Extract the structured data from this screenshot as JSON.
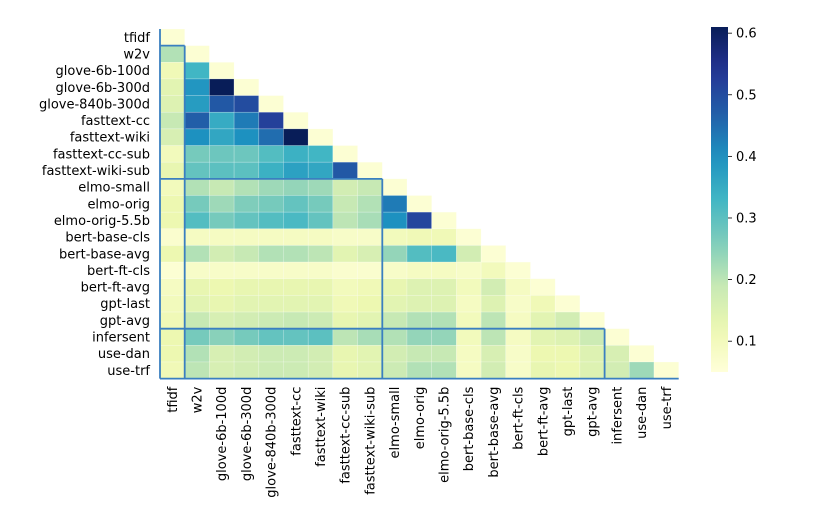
{
  "chart_data": {
    "type": "heatmap",
    "title": "",
    "mask": "lower-triangle",
    "labels": [
      "tfidf",
      "w2v",
      "glove-6b-100d",
      "glove-6b-300d",
      "glove-840b-300d",
      "fasttext-cc",
      "fasttext-wiki",
      "fasttext-cc-sub",
      "fasttext-wiki-sub",
      "elmo-small",
      "elmo-orig",
      "elmo-orig-5.5b",
      "bert-base-cls",
      "bert-base-avg",
      "bert-ft-cls",
      "bert-ft-avg",
      "gpt-last",
      "gpt-avg",
      "infersent",
      "use-dan",
      "use-trf"
    ],
    "values": [
      [
        0.06
      ],
      [
        0.21,
        0.06
      ],
      [
        0.11,
        0.33,
        0.06
      ],
      [
        0.14,
        0.39,
        0.61,
        0.06
      ],
      [
        0.15,
        0.38,
        0.48,
        0.5,
        0.06
      ],
      [
        0.19,
        0.47,
        0.35,
        0.43,
        0.52,
        0.06
      ],
      [
        0.16,
        0.4,
        0.36,
        0.4,
        0.45,
        0.61,
        0.06
      ],
      [
        0.1,
        0.27,
        0.28,
        0.28,
        0.31,
        0.34,
        0.33,
        0.06
      ],
      [
        0.13,
        0.29,
        0.3,
        0.3,
        0.34,
        0.37,
        0.36,
        0.48,
        0.06
      ],
      [
        0.1,
        0.21,
        0.19,
        0.21,
        0.23,
        0.24,
        0.23,
        0.17,
        0.19,
        0.06
      ],
      [
        0.12,
        0.27,
        0.23,
        0.26,
        0.27,
        0.29,
        0.27,
        0.19,
        0.21,
        0.43,
        0.06
      ],
      [
        0.12,
        0.31,
        0.27,
        0.29,
        0.31,
        0.32,
        0.29,
        0.2,
        0.22,
        0.4,
        0.51,
        0.06
      ],
      [
        0.07,
        0.09,
        0.09,
        0.09,
        0.09,
        0.09,
        0.09,
        0.08,
        0.08,
        0.1,
        0.11,
        0.11,
        0.06
      ],
      [
        0.12,
        0.21,
        0.17,
        0.19,
        0.21,
        0.21,
        0.2,
        0.14,
        0.16,
        0.24,
        0.31,
        0.32,
        0.17,
        0.06
      ],
      [
        0.06,
        0.08,
        0.08,
        0.08,
        0.08,
        0.08,
        0.08,
        0.07,
        0.07,
        0.08,
        0.09,
        0.09,
        0.08,
        0.1,
        0.06
      ],
      [
        0.09,
        0.13,
        0.12,
        0.13,
        0.13,
        0.13,
        0.13,
        0.1,
        0.11,
        0.13,
        0.15,
        0.15,
        0.1,
        0.17,
        0.09,
        0.06
      ],
      [
        0.1,
        0.14,
        0.13,
        0.14,
        0.14,
        0.14,
        0.14,
        0.11,
        0.12,
        0.14,
        0.15,
        0.15,
        0.09,
        0.15,
        0.08,
        0.11,
        0.06
      ],
      [
        0.11,
        0.19,
        0.16,
        0.17,
        0.18,
        0.19,
        0.18,
        0.13,
        0.14,
        0.19,
        0.21,
        0.21,
        0.1,
        0.2,
        0.09,
        0.14,
        0.17,
        0.06
      ],
      [
        0.12,
        0.27,
        0.25,
        0.27,
        0.29,
        0.29,
        0.3,
        0.2,
        0.22,
        0.21,
        0.24,
        0.24,
        0.1,
        0.2,
        0.09,
        0.14,
        0.15,
        0.18,
        0.06
      ],
      [
        0.12,
        0.21,
        0.16,
        0.17,
        0.18,
        0.18,
        0.17,
        0.13,
        0.14,
        0.17,
        0.19,
        0.19,
        0.09,
        0.16,
        0.08,
        0.12,
        0.12,
        0.15,
        0.16,
        0.06
      ],
      [
        0.11,
        0.2,
        0.16,
        0.17,
        0.18,
        0.18,
        0.17,
        0.13,
        0.14,
        0.18,
        0.21,
        0.21,
        0.09,
        0.17,
        0.08,
        0.13,
        0.12,
        0.15,
        0.17,
        0.23,
        0.06
      ]
    ],
    "colorbar": {
      "colormap": "YlGnBu",
      "vmin": 0.05,
      "vmax": 0.61,
      "ticks": [
        "0.1",
        "0.2",
        "0.3",
        "0.4",
        "0.5",
        "0.6"
      ]
    },
    "group_boundaries": [
      1,
      9,
      18,
      21
    ]
  }
}
